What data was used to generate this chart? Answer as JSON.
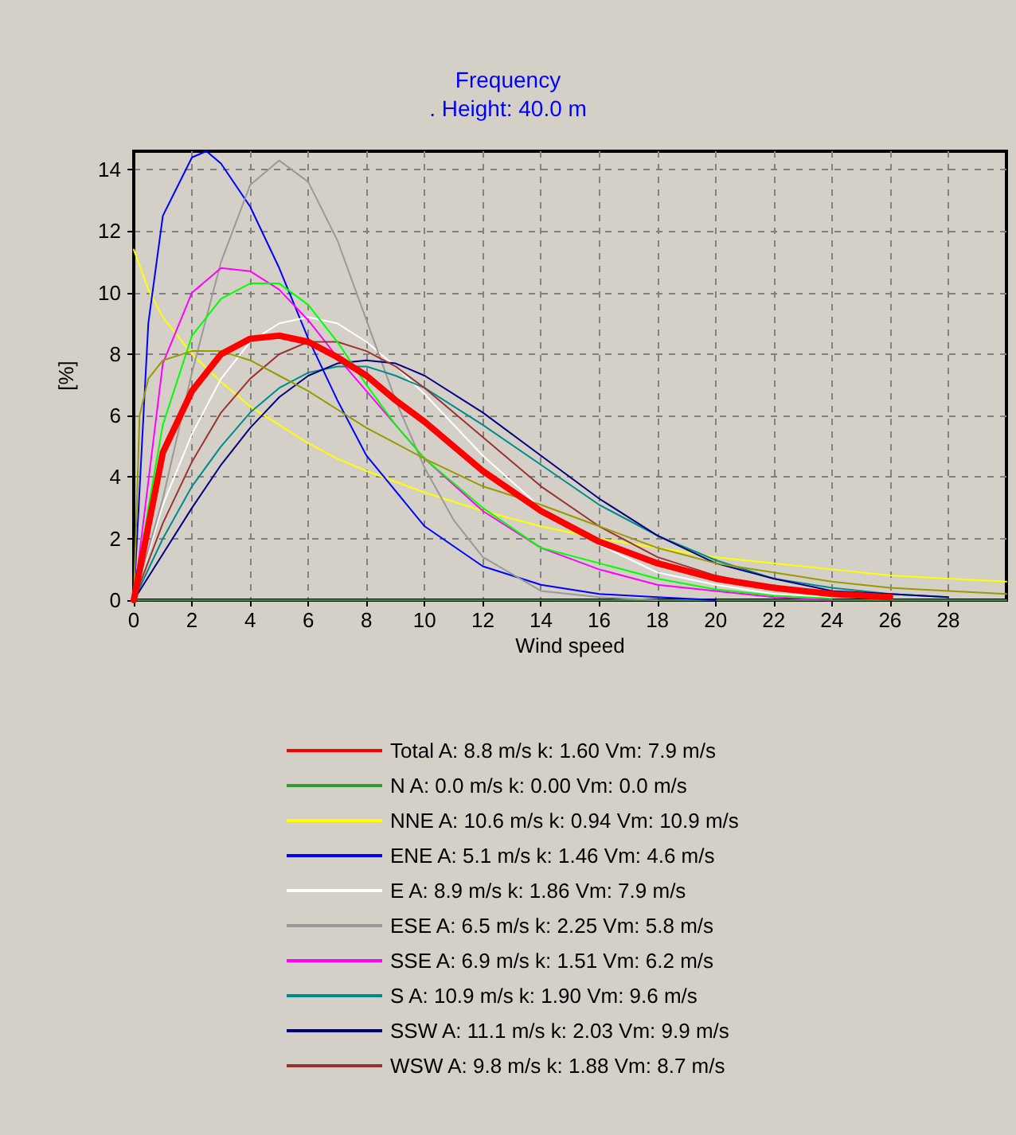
{
  "chart_data": {
    "type": "line",
    "title": "Frequency",
    "subtitle": ". Height: 40.0 m",
    "xlabel": "Wind speed",
    "ylabel": "[%]",
    "xlim": [
      0,
      30
    ],
    "xticks": [
      0,
      2,
      4,
      6,
      8,
      10,
      12,
      14,
      16,
      18,
      20,
      22,
      24,
      26,
      28
    ],
    "ylim": [
      0,
      14.6
    ],
    "yticks": [
      0,
      2,
      4,
      6,
      8,
      10,
      12,
      14
    ],
    "grid": true,
    "legend": "bottom",
    "marker": "none",
    "line_style": "solid",
    "series": [
      {
        "name": "Total A: 8.8 m/s k: 1.60 Vm: 7.9 m/s",
        "color": "#ff0000",
        "x": [
          0,
          1,
          2,
          3,
          4,
          5,
          6,
          7,
          8,
          9,
          10,
          12,
          14,
          16,
          18,
          20,
          22,
          24,
          26
        ],
        "values": [
          0,
          4.8,
          6.8,
          8.0,
          8.5,
          8.6,
          8.4,
          7.9,
          7.3,
          6.5,
          5.8,
          4.2,
          2.9,
          1.9,
          1.2,
          0.7,
          0.4,
          0.2,
          0.1
        ]
      },
      {
        "name": "N A: 0.0 m/s k: 0.00 Vm: 0.0 m/s",
        "color": "#339933",
        "x": [
          0,
          30
        ],
        "values": [
          0,
          0
        ]
      },
      {
        "name": "NNE A: 10.6 m/s k: 0.94 Vm: 10.9 m/s",
        "color": "#ffff00",
        "x": [
          0,
          0.5,
          1,
          2,
          3,
          4,
          5,
          6,
          7,
          8,
          10,
          12,
          14,
          16,
          18,
          20,
          22,
          24,
          26,
          28,
          30
        ],
        "values": [
          11.4,
          10.1,
          9.2,
          8.0,
          7.1,
          6.3,
          5.7,
          5.1,
          4.6,
          4.2,
          3.5,
          2.9,
          2.4,
          2.0,
          1.7,
          1.4,
          1.2,
          1.0,
          0.8,
          0.7,
          0.6
        ]
      },
      {
        "name": "ENE A: 5.1 m/s k: 1.46 Vm: 4.6 m/s",
        "color": "#0000ff",
        "x": [
          0,
          0.5,
          1,
          2,
          2.5,
          3,
          4,
          5,
          6,
          7,
          8,
          10,
          12,
          14,
          16,
          18,
          20
        ],
        "values": [
          0,
          9,
          12.5,
          14.4,
          14.6,
          14.2,
          12.8,
          10.8,
          8.5,
          6.5,
          4.7,
          2.4,
          1.1,
          0.5,
          0.2,
          0.1,
          0
        ]
      },
      {
        "name": "E A: 8.9 m/s k: 1.86 Vm: 7.9 m/s",
        "color": "#ffffff",
        "x": [
          0,
          1,
          2,
          3,
          4,
          5,
          6,
          7,
          8,
          9,
          10,
          12,
          14,
          16,
          18,
          20,
          22,
          24
        ],
        "values": [
          0,
          3.1,
          5.4,
          7.2,
          8.4,
          9.0,
          9.2,
          9.0,
          8.4,
          7.6,
          6.7,
          4.7,
          3.0,
          1.8,
          0.9,
          0.5,
          0.2,
          0.1
        ]
      },
      {
        "name": "ESE A: 6.5 m/s k: 2.25 Vm: 5.8 m/s",
        "color": "#999999",
        "x": [
          0,
          1,
          2,
          3,
          4,
          5,
          6,
          7,
          8,
          9,
          10,
          11,
          12,
          14,
          16,
          18
        ],
        "values": [
          0,
          3.3,
          7.4,
          11.0,
          13.5,
          14.3,
          13.6,
          11.7,
          9.1,
          6.5,
          4.3,
          2.6,
          1.4,
          0.3,
          0.1,
          0
        ]
      },
      {
        "name": "SSE A: 6.9 m/s k: 1.51 Vm: 6.2 m/s",
        "color": "#ff00ff",
        "x": [
          0,
          1,
          2,
          3,
          4,
          5,
          6,
          7,
          8,
          10,
          12,
          14,
          16,
          18,
          20,
          22,
          24
        ],
        "values": [
          0,
          7.7,
          10.0,
          10.8,
          10.7,
          10.1,
          9.1,
          7.9,
          6.8,
          4.6,
          2.9,
          1.7,
          1.0,
          0.5,
          0.3,
          0.1,
          0
        ]
      },
      {
        "name": "S A: 10.9 m/s k: 1.90 Vm: 9.6 m/s",
        "color": "#008b8b",
        "x": [
          0,
          1,
          2,
          3,
          4,
          5,
          6,
          7,
          8,
          9,
          10,
          12,
          14,
          16,
          18,
          20,
          22,
          24,
          26,
          28
        ],
        "values": [
          0,
          2.0,
          3.7,
          5.0,
          6.1,
          6.9,
          7.4,
          7.6,
          7.6,
          7.3,
          6.9,
          5.7,
          4.4,
          3.1,
          2.1,
          1.3,
          0.7,
          0.4,
          0.2,
          0.1
        ]
      },
      {
        "name": "SSW A: 11.1 m/s k: 2.03 Vm: 9.9 m/s",
        "color": "#000080",
        "x": [
          0,
          1,
          2,
          3,
          4,
          5,
          6,
          7,
          8,
          9,
          10,
          12,
          14,
          16,
          18,
          20,
          22,
          24,
          26,
          28
        ],
        "values": [
          0,
          1.5,
          3.0,
          4.4,
          5.6,
          6.6,
          7.3,
          7.7,
          7.8,
          7.7,
          7.3,
          6.1,
          4.7,
          3.3,
          2.1,
          1.2,
          0.7,
          0.3,
          0.2,
          0.1
        ]
      },
      {
        "name": "WSW A: 9.8 m/s k: 1.88 Vm: 8.7 m/s",
        "color": "#993333",
        "x": [
          0,
          1,
          2,
          3,
          4,
          5,
          6,
          7,
          8,
          9,
          10,
          12,
          14,
          16,
          18,
          20,
          22,
          24,
          26
        ],
        "values": [
          0,
          2.5,
          4.5,
          6.1,
          7.2,
          8.0,
          8.4,
          8.4,
          8.1,
          7.6,
          6.9,
          5.3,
          3.7,
          2.4,
          1.4,
          0.8,
          0.4,
          0.2,
          0.1
        ]
      },
      {
        "color": "#00ff00",
        "x": [
          0,
          0.5,
          1,
          2,
          3,
          4,
          5,
          6,
          7,
          8,
          9,
          10,
          12,
          14,
          16,
          18,
          20,
          22,
          24
        ],
        "values": [
          0,
          3,
          5.7,
          8.6,
          9.8,
          10.3,
          10.3,
          9.6,
          8.4,
          7.0,
          5.7,
          4.6,
          3.0,
          1.7,
          1.2,
          0.7,
          0.35,
          0.15,
          0.05
        ]
      },
      {
        "color": "#999900",
        "x": [
          0,
          0.2,
          0.5,
          1,
          2,
          3,
          4,
          5,
          6,
          7,
          8,
          10,
          12,
          14,
          16,
          18,
          20,
          22,
          24,
          26,
          28,
          30
        ],
        "values": [
          0,
          6,
          7.2,
          7.8,
          8.1,
          8.1,
          7.8,
          7.3,
          6.8,
          6.2,
          5.6,
          4.6,
          3.7,
          3.1,
          2.4,
          1.7,
          1.2,
          0.9,
          0.6,
          0.4,
          0.3,
          0.2
        ]
      }
    ]
  }
}
